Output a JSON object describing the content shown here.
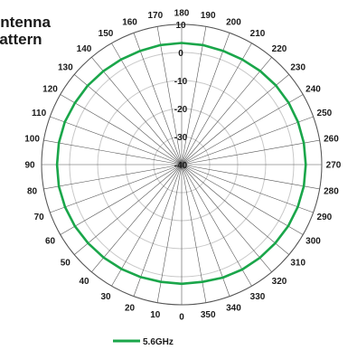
{
  "title_lines": [
    "Antenna",
    "Pattern"
  ],
  "colors": {
    "series": "#1aa64a",
    "grid": "#c8c8c8",
    "axis": "#555555"
  },
  "chart_data": {
    "type": "polar",
    "title": "Antenna Pattern",
    "angle_unit": "degrees",
    "angle_zero": "bottom",
    "angle_direction": "clockwise",
    "angle_ticks": [
      0,
      10,
      20,
      30,
      40,
      50,
      60,
      70,
      80,
      90,
      100,
      110,
      120,
      130,
      140,
      150,
      160,
      170,
      180,
      190,
      200,
      210,
      220,
      230,
      240,
      250,
      260,
      270,
      280,
      290,
      300,
      310,
      320,
      330,
      340,
      350
    ],
    "radial_ticks": [
      -40,
      -30,
      -20,
      -10,
      0,
      10
    ],
    "radial_range": [
      -40,
      10
    ],
    "grid": true,
    "legend_position": "bottom",
    "series": [
      {
        "name": "5.6GHz",
        "color": "#1aa64a",
        "angles": [
          0,
          10,
          20,
          30,
          40,
          50,
          60,
          70,
          80,
          90,
          100,
          110,
          120,
          130,
          140,
          150,
          160,
          170,
          180,
          190,
          200,
          210,
          220,
          230,
          240,
          250,
          260,
          270,
          280,
          290,
          300,
          310,
          320,
          330,
          340,
          350
        ],
        "values": [
          2.5,
          2.5,
          2.7,
          3.0,
          3.3,
          3.6,
          4.0,
          4.3,
          4.5,
          4.5,
          4.5,
          4.4,
          4.0,
          3.8,
          3.5,
          3.3,
          3.2,
          3.3,
          3.4,
          3.3,
          3.2,
          3.3,
          3.6,
          3.9,
          4.1,
          4.2,
          4.3,
          4.3,
          4.3,
          4.1,
          3.9,
          3.6,
          3.4,
          3.2,
          2.9,
          2.5
        ]
      }
    ]
  }
}
